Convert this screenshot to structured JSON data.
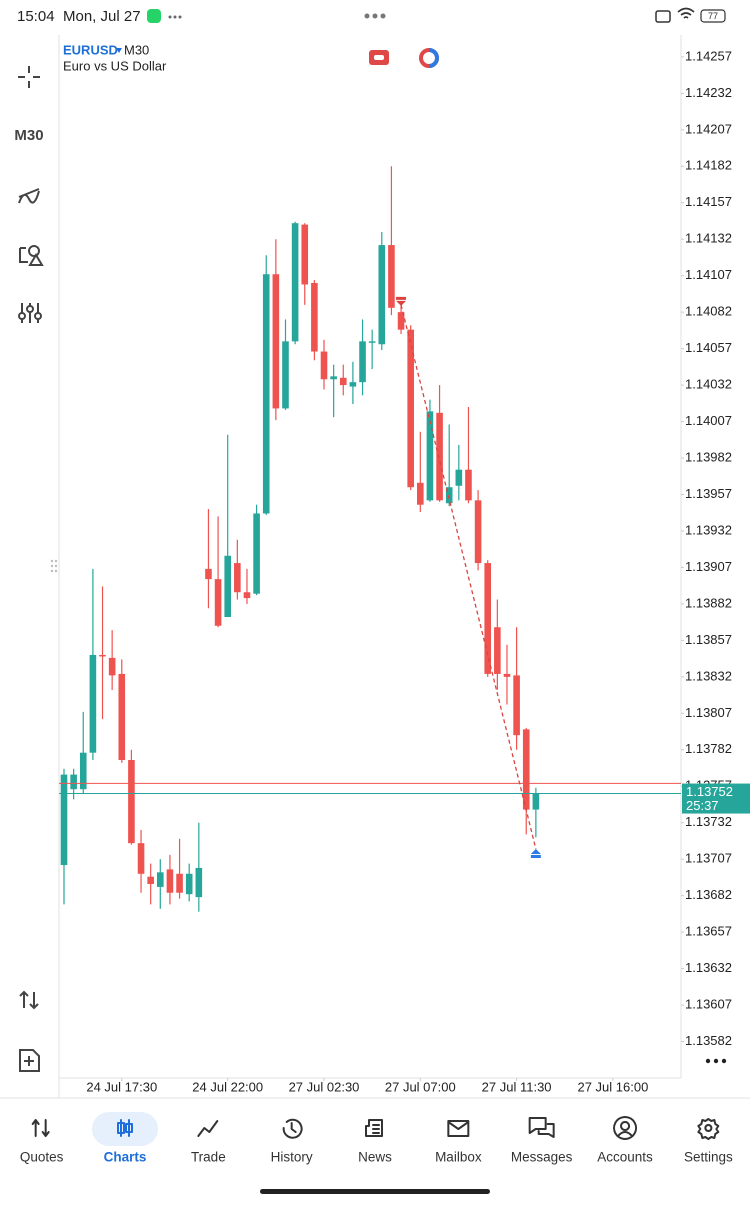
{
  "status_bar": {
    "time": "15:04",
    "date": "Mon, Jul 27",
    "battery": "77"
  },
  "toolbar": {
    "timeframe": "M30"
  },
  "chart_data": {
    "type": "candlestick",
    "symbol": "EURUSD",
    "timeframe": "M30",
    "description": "Euro vs US Dollar",
    "categories": [
      null,
      null,
      null,
      null,
      null,
      null,
      "24 Jul 17:30",
      null,
      null,
      null,
      null,
      null,
      null,
      null,
      null,
      null,
      null,
      "24 Jul 22:00",
      null,
      null,
      null,
      null,
      null,
      null,
      null,
      null,
      null,
      "27 Jul 02:30",
      null,
      null,
      null,
      null,
      null,
      null,
      null,
      null,
      null,
      "27 Jul 07:00",
      null,
      null,
      null,
      null,
      null,
      null,
      null,
      null,
      null,
      "27 Jul 11:30",
      null,
      null,
      null,
      null,
      null,
      null,
      null,
      null,
      null,
      "27 Jul 16:00"
    ],
    "open": [
      1.13703,
      1.13755,
      1.13755,
      1.1378,
      1.13847,
      1.13845,
      1.13834,
      1.13775,
      1.13718,
      1.13695,
      1.13688,
      1.137,
      1.13697,
      1.13683,
      1.13681,
      1.13906,
      1.13899,
      1.13873,
      1.1391,
      1.1389,
      1.13889,
      1.13944,
      1.14108,
      1.14016,
      1.14062,
      1.14142,
      1.14102,
      1.14055,
      1.14036,
      1.14037,
      1.14031,
      1.14034,
      1.14061,
      1.1406,
      1.14128,
      1.14082,
      1.1407,
      1.13965,
      1.13953,
      1.14013,
      1.13951,
      1.13963,
      1.13974,
      1.13953,
      1.1391,
      1.13866,
      1.13834,
      1.13833,
      1.13796,
      1.13741,
      null,
      null,
      null,
      null,
      null,
      null,
      null,
      null
    ],
    "high": [
      1.13769,
      1.13769,
      1.13808,
      1.13906,
      1.13894,
      1.13864,
      1.13844,
      1.13782,
      1.13727,
      1.13704,
      1.13707,
      1.1371,
      1.13721,
      1.13704,
      1.13732,
      1.13947,
      1.13942,
      1.13998,
      1.13926,
      1.13906,
      1.1395,
      1.14121,
      1.14132,
      1.14077,
      1.14144,
      1.14143,
      1.14104,
      1.14063,
      1.14046,
      1.14046,
      1.14048,
      1.14077,
      1.1407,
      1.14137,
      1.14182,
      1.14087,
      1.14073,
      1.14,
      1.14022,
      1.14032,
      1.14005,
      1.13991,
      1.14017,
      1.1396,
      1.13912,
      1.13885,
      1.13854,
      1.13866,
      1.13797,
      1.13756,
      null,
      null,
      null,
      null,
      null,
      null,
      null,
      null
    ],
    "low": [
      1.13676,
      1.13748,
      1.13752,
      1.13775,
      1.13803,
      1.13823,
      1.13773,
      1.13717,
      1.13684,
      1.13676,
      1.13673,
      1.13676,
      1.1368,
      1.13678,
      1.13671,
      1.13879,
      1.13866,
      1.13873,
      1.13885,
      1.13882,
      1.13888,
      1.13943,
      1.14008,
      1.14015,
      1.1406,
      1.14087,
      1.14049,
      1.14029,
      1.1401,
      1.14025,
      1.14019,
      1.14025,
      1.14043,
      1.14056,
      1.1408,
      1.14067,
      1.1396,
      1.13945,
      1.13952,
      1.13952,
      1.13949,
      1.13953,
      1.13951,
      1.13905,
      1.13832,
      1.13823,
      1.13813,
      1.13782,
      1.13724,
      1.13722,
      null,
      null,
      null,
      null,
      null,
      null,
      null,
      null
    ],
    "close": [
      1.13765,
      1.13765,
      1.1378,
      1.13847,
      1.13846,
      1.13833,
      1.13775,
      1.13718,
      1.13697,
      1.1369,
      1.13698,
      1.13684,
      1.13684,
      1.13697,
      1.13701,
      1.13899,
      1.13867,
      1.13915,
      1.1389,
      1.13886,
      1.13944,
      1.14108,
      1.14016,
      1.14062,
      1.14143,
      1.14101,
      1.14055,
      1.14036,
      1.14038,
      1.14032,
      1.14034,
      1.14062,
      1.14062,
      1.14128,
      1.14085,
      1.1407,
      1.13962,
      1.1395,
      1.14014,
      1.13953,
      1.13962,
      1.13974,
      1.13953,
      1.1391,
      1.13834,
      1.13834,
      1.13832,
      1.13792,
      1.13741,
      1.13752,
      null,
      null,
      null,
      null,
      null,
      null,
      null,
      null
    ],
    "up_color": "#26a69a",
    "down_color": "#ef5350",
    "ylim": [
      1.13557,
      1.14272
    ],
    "yticks": [
      1.14257,
      1.14232,
      1.14207,
      1.14182,
      1.14157,
      1.14132,
      1.14107,
      1.14082,
      1.14057,
      1.14032,
      1.14007,
      1.13982,
      1.13957,
      1.13932,
      1.13907,
      1.13882,
      1.13857,
      1.13832,
      1.13807,
      1.13782,
      1.13757,
      1.13732,
      1.13707,
      1.13682,
      1.13657,
      1.13632,
      1.13607,
      1.13582
    ],
    "bid": 1.13752,
    "ask": 1.13759,
    "countdown": "25:37",
    "trade": {
      "entry_index": 35,
      "entry_price": 1.14087,
      "exit_index": 49,
      "exit_price": 1.13714
    }
  },
  "nav": {
    "items": [
      "Quotes",
      "Charts",
      "Trade",
      "History",
      "News",
      "Mailbox",
      "Messages",
      "Accounts",
      "Settings"
    ],
    "active": 1
  }
}
